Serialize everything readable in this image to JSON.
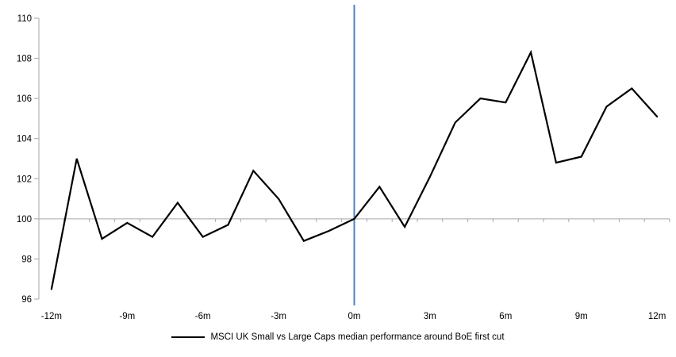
{
  "chart_data": {
    "type": "line",
    "title": "",
    "xlabel": "",
    "ylabel": "",
    "x": [
      -12,
      -11,
      -10,
      -9,
      -8,
      -7,
      -6,
      -5,
      -4,
      -3,
      -2,
      -1,
      0,
      1,
      2,
      3,
      4,
      5,
      6,
      7,
      8,
      9,
      10,
      11,
      12
    ],
    "series": [
      {
        "name": "MSCI UK Small vs Large Caps median performance around BoE first cut",
        "color": "#000000",
        "values": [
          96.5,
          103.0,
          99.0,
          99.8,
          99.1,
          100.8,
          99.1,
          99.7,
          102.4,
          101.0,
          98.9,
          99.4,
          100.0,
          101.6,
          99.6,
          102.1,
          104.8,
          106.0,
          105.8,
          108.3,
          102.8,
          103.1,
          105.6,
          106.5,
          105.1
        ]
      }
    ],
    "ylim": [
      96,
      110
    ],
    "ytick_values": [
      96,
      98,
      100,
      102,
      104,
      106,
      108,
      110
    ],
    "ytick_labels": [
      "96",
      "98",
      "100",
      "102",
      "104",
      "106",
      "108",
      "110"
    ],
    "xtick_months": [
      -12,
      -9,
      -6,
      -3,
      0,
      3,
      6,
      9,
      12
    ],
    "xtick_labels": [
      "-12m",
      "-9m",
      "-6m",
      "-3m",
      "0m",
      "3m",
      "6m",
      "9m",
      "12m"
    ],
    "baseline_value": 100,
    "event_line_month": 0,
    "grid": "baseline-only",
    "legend_position": "bottom"
  },
  "legend": {
    "label": "MSCI UK Small vs Large Caps median performance around BoE first cut"
  },
  "colors": {
    "series_line": "#000000",
    "event_line": "#4f81bd",
    "axis": "#a6a6a6",
    "baseline": "#a6a6a6",
    "tick_label": "#000000",
    "background": "#ffffff"
  }
}
